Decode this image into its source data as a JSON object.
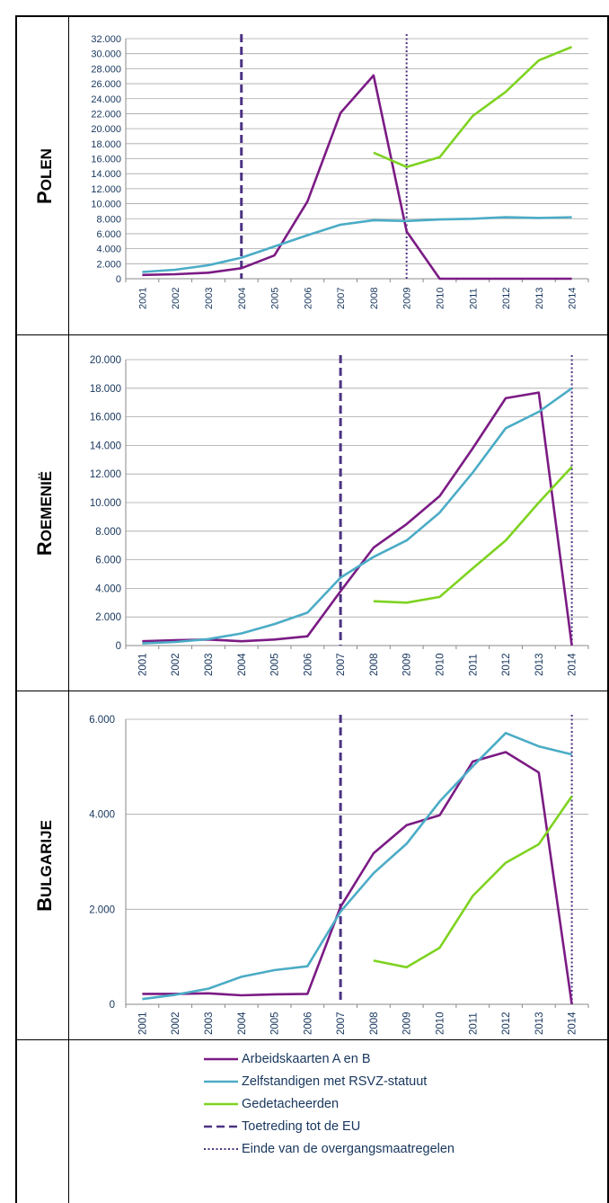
{
  "labels": {
    "poland": "Polen",
    "romania": "Roemenië",
    "bulgaria": "Bulgarije"
  },
  "legend": [
    {
      "name": "Arbeidskaarten A en B",
      "color": "#7b1b84",
      "dash": "solid"
    },
    {
      "name": "Zelfstandigen met RSVZ-statuut",
      "color": "#4bacc6",
      "dash": "solid"
    },
    {
      "name": "Gedetacheerden",
      "color": "#7ed321",
      "dash": "solid"
    },
    {
      "name": "Toetreding tot de EU",
      "color": "#4b3383",
      "dash": "dashed"
    },
    {
      "name": "Einde van de overgangsmaatregelen",
      "color": "#4b3383",
      "dash": "dotted"
    }
  ],
  "colors": {
    "arbeid": "#7b1b84",
    "zelf": "#4bacc6",
    "gedet": "#7ed321",
    "vline": "#4b3383",
    "axis_text": "#17365d",
    "grid": "#a6a6a6"
  },
  "chart_data": [
    {
      "type": "line",
      "panel": "Polen",
      "x": [
        "2001",
        "2002",
        "2003",
        "2004",
        "2005",
        "2006",
        "2007",
        "2008",
        "2009",
        "2010",
        "2011",
        "2012",
        "2013",
        "2014"
      ],
      "ylim": [
        0,
        32000
      ],
      "yticks": [
        0,
        2000,
        4000,
        6000,
        8000,
        10000,
        12000,
        14000,
        16000,
        18000,
        20000,
        22000,
        24000,
        26000,
        28000,
        30000,
        32000
      ],
      "ytick_labels": [
        "0",
        "2.000",
        "4.000",
        "6.000",
        "8.000",
        "10.000",
        "12.000",
        "14.000",
        "16.000",
        "18.000",
        "20.000",
        "22.000",
        "24.000",
        "26.000",
        "28.000",
        "30.000",
        "32.000"
      ],
      "grid": true,
      "series": [
        {
          "name": "Arbeidskaarten A en B",
          "values": [
            500,
            600,
            800,
            1400,
            3100,
            10300,
            22100,
            27100,
            6300,
            0,
            0,
            0,
            0,
            0
          ]
        },
        {
          "name": "Zelfstandigen met RSVZ-statuut",
          "values": [
            900,
            1200,
            1800,
            2800,
            4300,
            5800,
            7200,
            7800,
            7700,
            7900,
            8000,
            8200,
            8100,
            8200
          ]
        },
        {
          "name": "Gedetacheerden",
          "values": [
            null,
            null,
            null,
            null,
            null,
            null,
            null,
            16800,
            14900,
            16200,
            21700,
            24900,
            29100,
            30900
          ]
        }
      ],
      "vlines": [
        {
          "at": "2004",
          "style": "dashed"
        },
        {
          "at": "2009",
          "style": "dotted"
        }
      ]
    },
    {
      "type": "line",
      "panel": "Roemenië",
      "x": [
        "2001",
        "2002",
        "2003",
        "2004",
        "2005",
        "2006",
        "2007",
        "2008",
        "2009",
        "2010",
        "2011",
        "2012",
        "2013",
        "2014"
      ],
      "ylim": [
        0,
        20000
      ],
      "yticks": [
        0,
        2000,
        4000,
        6000,
        8000,
        10000,
        12000,
        14000,
        16000,
        18000,
        20000
      ],
      "ytick_labels": [
        "0",
        "2.000",
        "4.000",
        "6.000",
        "8.000",
        "10.000",
        "12.000",
        "14.000",
        "16.000",
        "18.000",
        "20.000"
      ],
      "grid": true,
      "series": [
        {
          "name": "Arbeidskaarten A en B",
          "values": [
            300,
            380,
            420,
            300,
            420,
            650,
            3800,
            6850,
            8500,
            10450,
            13800,
            17300,
            17700,
            0
          ]
        },
        {
          "name": "Zelfstandigen met RSVZ-statuut",
          "values": [
            150,
            250,
            450,
            850,
            1500,
            2300,
            4750,
            6200,
            7350,
            9300,
            12100,
            15200,
            16350,
            18000
          ]
        },
        {
          "name": "Gedetacheerden",
          "values": [
            null,
            null,
            null,
            null,
            null,
            null,
            null,
            3100,
            3000,
            3400,
            5400,
            7350,
            10000,
            12500
          ]
        }
      ],
      "vlines": [
        {
          "at": "2007",
          "style": "dashed"
        },
        {
          "at": "2014",
          "style": "dotted"
        }
      ]
    },
    {
      "type": "line",
      "panel": "Bulgarije",
      "x": [
        "2001",
        "2002",
        "2003",
        "2004",
        "2005",
        "2006",
        "2007",
        "2008",
        "2009",
        "2010",
        "2011",
        "2012",
        "2013",
        "2014"
      ],
      "ylim": [
        0,
        6000
      ],
      "yticks": [
        0,
        2000,
        4000,
        6000
      ],
      "ytick_labels": [
        "0",
        "2.000",
        "4.000",
        "6.000"
      ],
      "grid": true,
      "series": [
        {
          "name": "Arbeidskaarten A en B",
          "values": [
            220,
            220,
            230,
            190,
            210,
            220,
            2050,
            3180,
            3770,
            3980,
            5110,
            5310,
            4880,
            0
          ]
        },
        {
          "name": "Zelfstandigen met RSVZ-statuut",
          "values": [
            110,
            200,
            330,
            580,
            720,
            800,
            1950,
            2760,
            3380,
            4270,
            5010,
            5710,
            5430,
            5260
          ]
        },
        {
          "name": "Gedetacheerden",
          "values": [
            null,
            null,
            null,
            null,
            null,
            null,
            null,
            920,
            780,
            1190,
            2280,
            2980,
            3370,
            4380
          ]
        }
      ],
      "vlines": [
        {
          "at": "2007",
          "style": "dashed"
        },
        {
          "at": "2014",
          "style": "dotted"
        }
      ]
    }
  ]
}
